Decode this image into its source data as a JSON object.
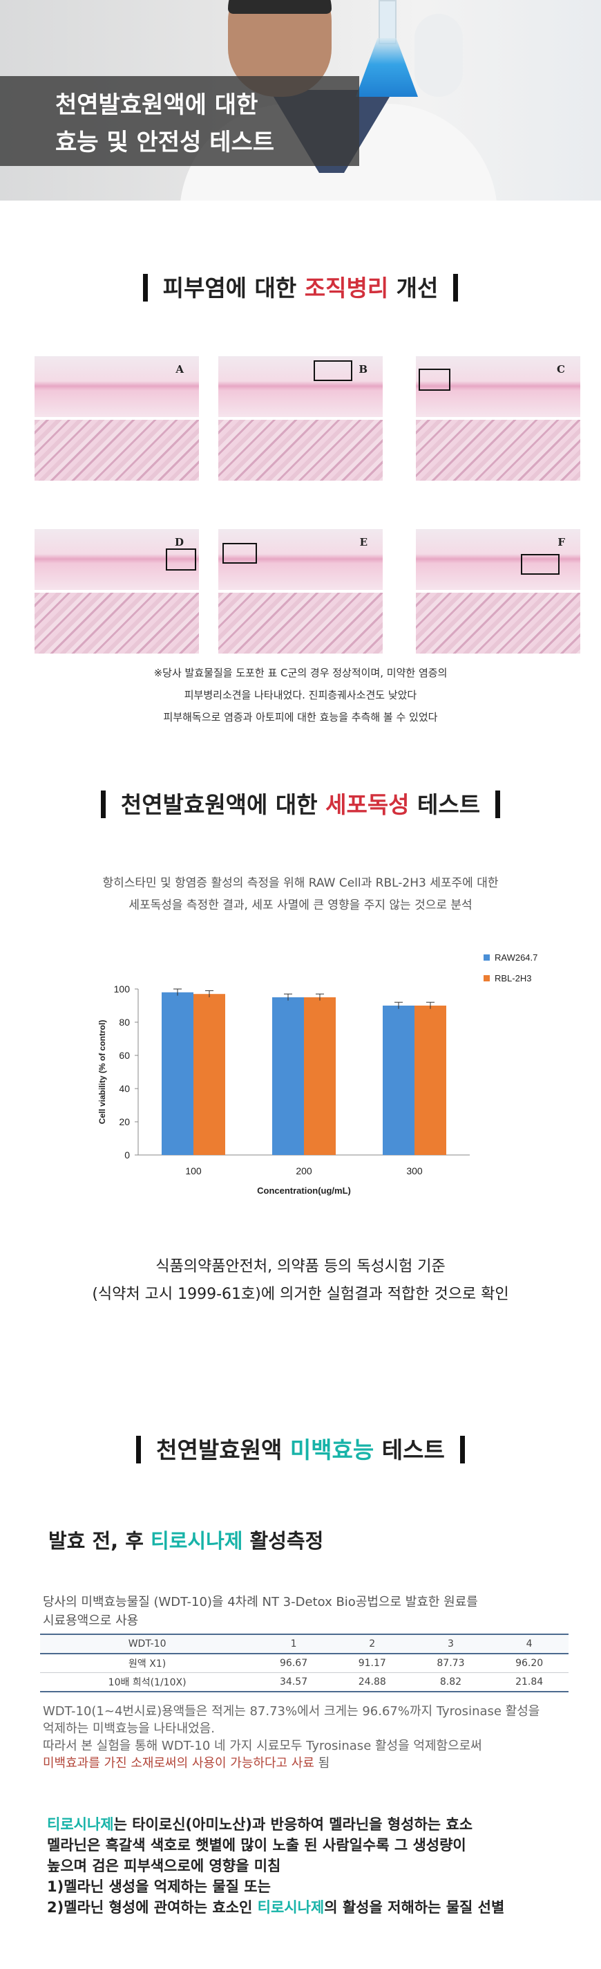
{
  "hero": {
    "title_line1": "천연발효원액에 대한",
    "title_line2": "효능 및 안전성 테스트"
  },
  "section1": {
    "prefix": "피부염에 대한 ",
    "highlight": "조직병리",
    "suffix": " 개선",
    "panels": [
      "A",
      "B",
      "C",
      "D",
      "E",
      "F"
    ],
    "note_lines": [
      "※당사 발효물질을 도포한 표 C군의 경우 정상적이며, 미약한 염증의",
      "피부병리소견을 나타내었다. 진피층궤사소견도 낮았다",
      "피부해독으로 염증과 아토피에 대한 효능을 추측해 볼 수 있었다"
    ]
  },
  "section2": {
    "prefix": "천연발효원액에 대한 ",
    "highlight": "세포독성",
    "suffix": " 테스트",
    "intro_lines": [
      "항히스타민 및 항염증 활성의 측정을 위해 RAW Cell과 RBL-2H3 세포주에 대한",
      "세포독성을 측정한 결과, 세포 사멸에 큰 영향을 주지 않는 것으로 분석"
    ],
    "confirm_lines": [
      "식품의약품안전처, 의약품 등의 독성시험 기준",
      "(식약처 고시 1999-61호)에 의거한 실험결과 적합한 것으로 확인"
    ]
  },
  "chart_data": {
    "type": "bar",
    "categories": [
      "100",
      "200",
      "300"
    ],
    "series": [
      {
        "name": "RAW264.7",
        "values": [
          98,
          95,
          90
        ],
        "error": [
          2,
          2,
          2
        ],
        "color": "#4a8fd6"
      },
      {
        "name": "RBL-2H3",
        "values": [
          97,
          95,
          90
        ],
        "error": [
          2,
          2,
          2
        ],
        "color": "#ec7d31"
      }
    ],
    "xlabel": "Concentration(ug/mL)",
    "ylabel": "Cell viability (% of control)",
    "ylim": [
      0,
      100
    ],
    "yticks": [
      "0",
      "20",
      "40",
      "60",
      "80",
      "100"
    ],
    "grid": false,
    "legend": "top-right"
  },
  "section3": {
    "prefix": "천연발효원액 ",
    "highlight": "미백효능",
    "suffix": " 테스트",
    "subtitle_prefix": "발효 전, 후 ",
    "subtitle_highlight": "티로시나제",
    "subtitle_suffix": " 활성측정",
    "desc_lines": [
      "당사의 미백효능물질 (WDT-10)을 4차례 NT 3-Detox Bio공법으로 발효한 원료를",
      "시료용액으로 사용"
    ],
    "table": {
      "header": [
        "WDT-10",
        "1",
        "2",
        "3",
        "4"
      ],
      "rows": [
        [
          "원액 X1)",
          "96.67",
          "91.17",
          "87.73",
          "96.20"
        ],
        [
          "10배 희석(1/10X)",
          "34.57",
          "24.88",
          "8.82",
          "21.84"
        ]
      ]
    },
    "result_lines": [
      "WDT-10(1~4번시료)용액들은 적게는 87.73%에서 크게는 96.67%까지 Tyrosinase 활성을",
      "억제하는 미백효능을 나타내었음."
    ],
    "conclusion_line1": "따라서 본 실험을 통해 WDT-10 네 가지 시료모두 Tyrosinase 활성을 억제함으로써",
    "conclusion_line2_highlight": "미백효과를 가진 소재로써의 사용이 가능하다고 사료",
    "conclusion_line2_suffix": " 됨",
    "body": {
      "l1_highlight": "티로시나제",
      "l1_rest": "는 타이로신(아미노산)과 반응하여 멜라닌을 형성하는 효소",
      "l2": "멜라닌은 흑갈색 색호로 햇볕에 많이 노출 된 사람일수록 그 생성량이",
      "l3": "높으며 검은 피부색으로에 영향을 미침",
      "l4": "1)멜라닌 생성을 억제하는 물질 또는",
      "l5_prefix": "2)멜라닌 형성에 관여하는 효소인 ",
      "l5_highlight": "티로시나제",
      "l5_suffix": "의 활성을 저해하는 물질 선별"
    }
  }
}
